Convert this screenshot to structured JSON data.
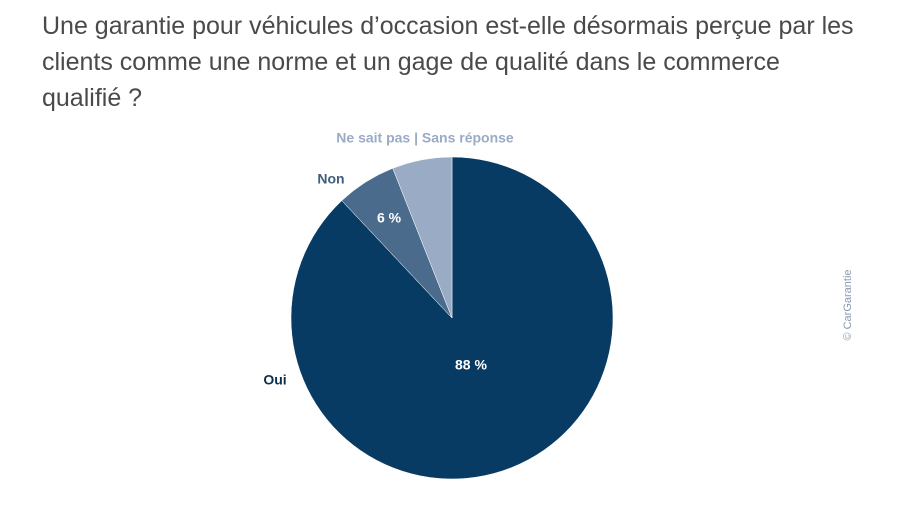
{
  "chart_data": {
    "type": "pie",
    "title": "Une garantie pour véhicules d’occasion est-elle désormais perçue par les clients comme une norme et un gage de qualité dans le commerce qualifié ?",
    "categories": [
      "Oui",
      "Non",
      "Ne sait pas | Sans réponse"
    ],
    "values": [
      88,
      6,
      6
    ],
    "value_labels": [
      "88 %",
      "6 %",
      null
    ],
    "colors": [
      "#073b64",
      "#4a6b8c",
      "#9aabc6"
    ],
    "credit": "© CarGarantie"
  }
}
